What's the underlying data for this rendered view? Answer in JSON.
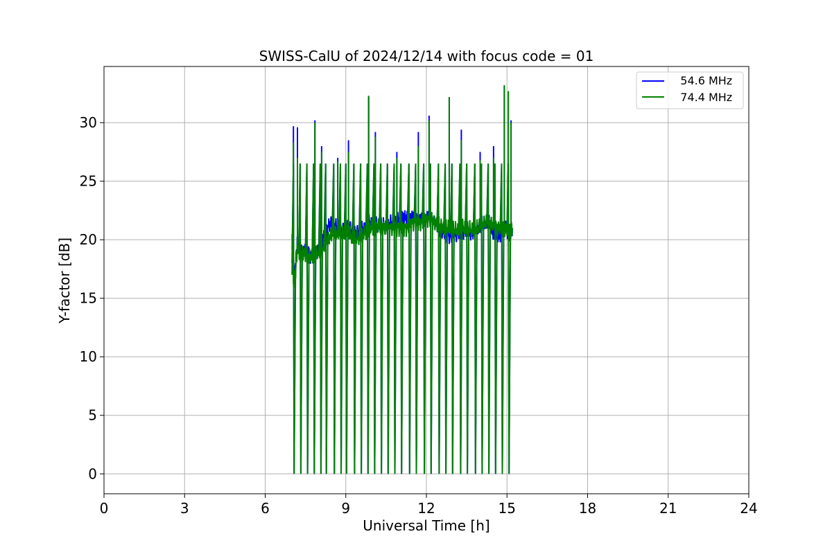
{
  "chart_data": {
    "type": "line",
    "title": "SWISS-CalU of 2024/12/14 with focus code = 01",
    "xlabel": "Universal Time [h]",
    "ylabel": "Y-factor [dB]",
    "xlim": [
      0,
      24
    ],
    "ylim": [
      -1.7,
      34.8
    ],
    "xticks": [
      0,
      3,
      6,
      9,
      12,
      15,
      18,
      21,
      24
    ],
    "yticks": [
      0,
      5,
      10,
      15,
      20,
      25,
      30
    ],
    "grid": true,
    "legend_position": "top-right",
    "series": [
      {
        "name": "   54.6 MHz",
        "color": "#0000ff",
        "x": [
          7.0,
          7.05,
          7.1,
          7.2,
          7.3,
          7.5,
          7.7,
          7.9,
          8.1,
          8.3,
          8.5,
          8.7,
          8.9,
          9.1,
          9.3,
          9.5,
          9.7,
          9.9,
          10.1,
          10.3,
          10.5,
          10.7,
          10.9,
          11.1,
          11.3,
          11.5,
          11.7,
          11.9,
          12.1,
          12.3,
          12.5,
          12.7,
          12.9,
          13.1,
          13.3,
          13.5,
          13.7,
          13.9,
          14.1,
          14.3,
          14.5,
          14.7,
          14.9,
          15.1,
          15.2
        ],
        "values": [
          19.5,
          18.0,
          16.8,
          20.0,
          19.0,
          19.2,
          18.7,
          19.0,
          19.8,
          21.0,
          21.5,
          21.0,
          20.8,
          21.2,
          20.5,
          20.8,
          21.0,
          21.5,
          21.2,
          21.3,
          21.0,
          21.5,
          21.6,
          22.0,
          21.8,
          22.0,
          21.7,
          21.8,
          22.0,
          21.5,
          21.0,
          20.5,
          20.3,
          20.5,
          20.6,
          20.8,
          20.5,
          21.0,
          21.3,
          21.5,
          20.5,
          20.2,
          21.0,
          20.5,
          21.0
        ],
        "spikes_up": [
          [
            7.05,
            29.7
          ],
          [
            7.2,
            29.6
          ],
          [
            7.85,
            30.2
          ],
          [
            8.1,
            28.0
          ],
          [
            8.7,
            27.0
          ],
          [
            9.1,
            28.5
          ],
          [
            9.85,
            32.2
          ],
          [
            10.1,
            29.2
          ],
          [
            10.9,
            27.5
          ],
          [
            11.7,
            29.2
          ],
          [
            12.1,
            30.6
          ],
          [
            12.85,
            32.1
          ],
          [
            13.3,
            29.4
          ],
          [
            14.0,
            27.5
          ],
          [
            14.5,
            28.0
          ],
          [
            14.9,
            33.1
          ],
          [
            15.15,
            30.2
          ]
        ],
        "spikes_down": [
          7.05,
          7.3,
          7.55,
          7.8,
          8.05,
          8.25,
          8.55,
          8.8,
          9.0,
          9.3,
          9.55,
          9.8,
          10.05,
          10.3,
          10.55,
          10.8,
          11.05,
          11.35,
          11.6,
          11.9,
          12.15,
          12.45,
          12.7,
          12.95,
          13.25,
          13.5,
          13.8,
          14.05,
          14.3,
          14.55,
          14.8,
          15.05
        ]
      },
      {
        "name": "   74.4 MHz",
        "color": "#008000",
        "x": [
          7.0,
          7.05,
          7.1,
          7.2,
          7.3,
          7.5,
          7.7,
          7.9,
          8.1,
          8.3,
          8.5,
          8.7,
          8.9,
          9.1,
          9.3,
          9.5,
          9.7,
          9.9,
          10.1,
          10.3,
          10.5,
          10.7,
          10.9,
          11.1,
          11.3,
          11.5,
          11.7,
          11.9,
          12.1,
          12.3,
          12.5,
          12.7,
          12.9,
          13.1,
          13.3,
          13.5,
          13.7,
          13.9,
          14.1,
          14.3,
          14.5,
          14.7,
          14.9,
          15.1,
          15.2
        ],
        "values": [
          20.0,
          17.0,
          16.5,
          19.5,
          18.8,
          18.8,
          18.5,
          18.8,
          19.0,
          20.0,
          20.5,
          20.6,
          20.5,
          20.6,
          20.0,
          20.2,
          20.5,
          21.0,
          21.0,
          21.2,
          21.0,
          21.0,
          21.0,
          21.0,
          21.0,
          21.5,
          21.4,
          21.6,
          21.8,
          21.5,
          21.2,
          21.0,
          21.0,
          20.8,
          21.0,
          21.0,
          20.8,
          21.0,
          21.3,
          21.5,
          21.2,
          21.0,
          21.0,
          20.8,
          21.0
        ],
        "spikes_up": [
          [
            7.05,
            28.3
          ],
          [
            7.2,
            27.0
          ],
          [
            7.85,
            30.0
          ],
          [
            8.1,
            27.5
          ],
          [
            8.7,
            26.7
          ],
          [
            9.1,
            27.5
          ],
          [
            9.85,
            32.3
          ],
          [
            10.1,
            28.8
          ],
          [
            10.9,
            27.0
          ],
          [
            11.7,
            28.0
          ],
          [
            12.1,
            30.2
          ],
          [
            12.85,
            32.2
          ],
          [
            13.3,
            28.5
          ],
          [
            14.0,
            26.8
          ],
          [
            14.5,
            27.0
          ],
          [
            14.9,
            33.2
          ],
          [
            15.05,
            32.7
          ],
          [
            15.15,
            30.0
          ]
        ],
        "spikes_down": [
          7.05,
          7.3,
          7.55,
          7.8,
          8.05,
          8.25,
          8.55,
          8.8,
          9.0,
          9.3,
          9.55,
          9.8,
          10.05,
          10.3,
          10.55,
          10.8,
          11.05,
          11.35,
          11.6,
          11.9,
          12.15,
          12.45,
          12.7,
          12.95,
          13.25,
          13.5,
          13.8,
          14.05,
          14.3,
          14.55,
          14.8,
          15.05
        ]
      }
    ]
  }
}
